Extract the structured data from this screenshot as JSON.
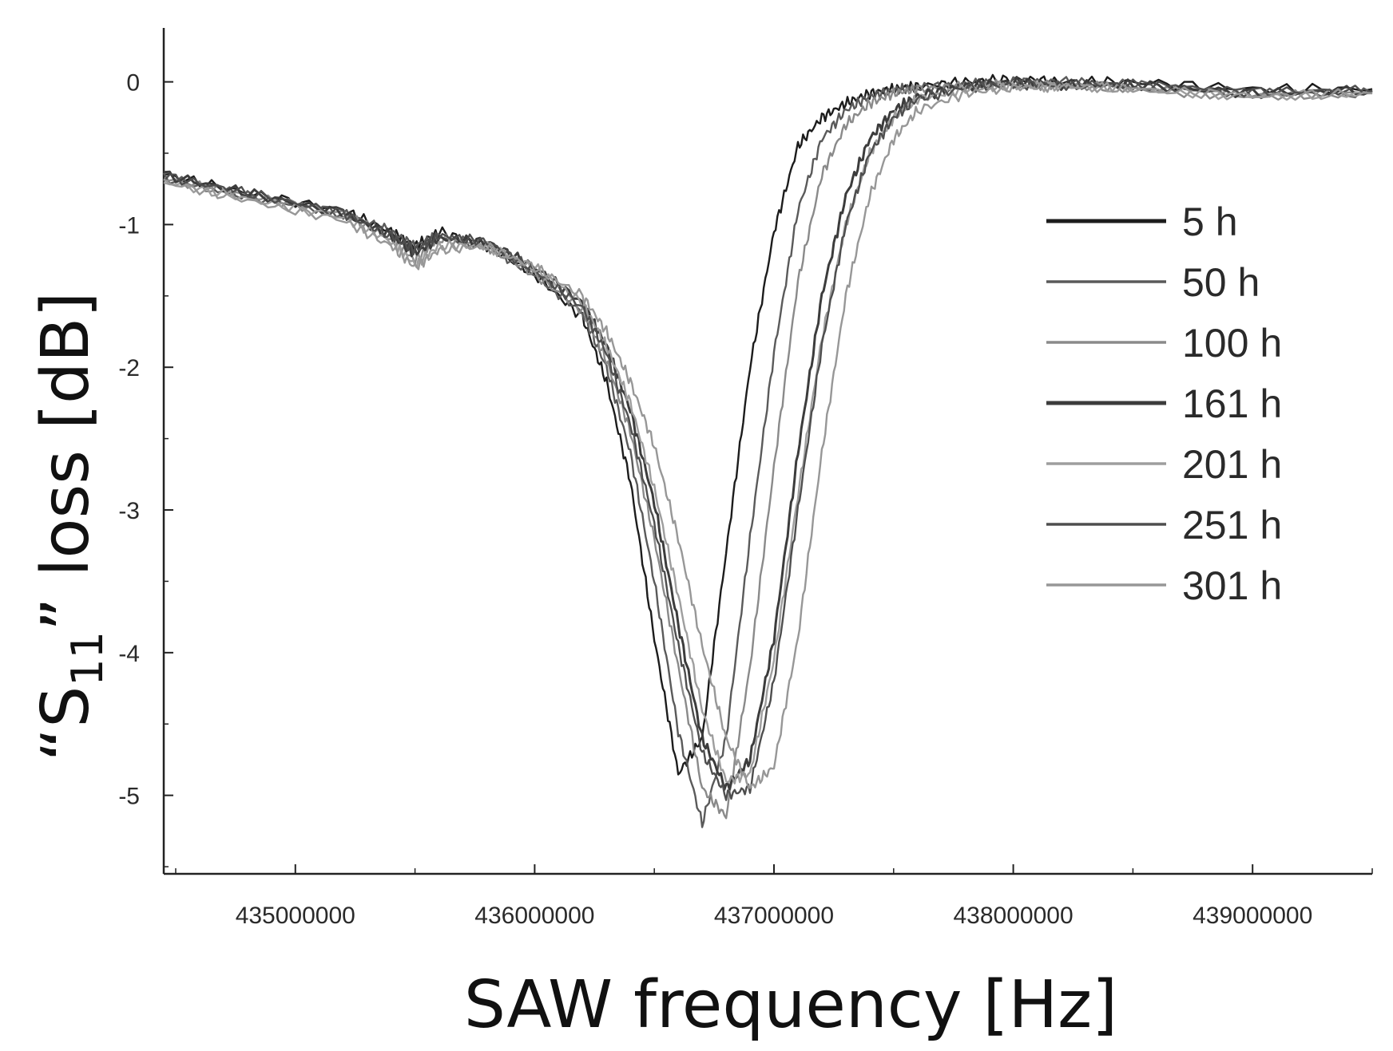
{
  "chart_data": {
    "type": "line",
    "title": "",
    "xlabel": "SAW frequency [Hz]",
    "ylabel": {
      "prefix": "“S",
      "subscript": "11",
      "suffix": "” loss [dB]"
    },
    "xlim": [
      434450000,
      439500000
    ],
    "ylim": [
      -5.55,
      0.35
    ],
    "xticks": [
      435000000,
      436000000,
      437000000,
      438000000,
      439000000
    ],
    "xtick_labels": [
      "435000000",
      "436000000",
      "437000000",
      "438000000",
      "439000000"
    ],
    "yticks": [
      0,
      -1,
      -2,
      -3,
      -4,
      -5
    ],
    "ytick_labels": [
      "0",
      "-1",
      "-2",
      "-3",
      "-4",
      "-5"
    ],
    "legend_position": "right",
    "grid": false,
    "series": [
      {
        "name": "5 h",
        "color": "#1c1c1c",
        "x": [
          434450000,
          434800000,
          435200000,
          435400000,
          435500000,
          435600000,
          435800000,
          436000000,
          436200000,
          436300000,
          436400000,
          436500000,
          436600000,
          436700000,
          436800000,
          436900000,
          437000000,
          437100000,
          437200000,
          437300000,
          437400000,
          437500000,
          437600000,
          437800000,
          438000000,
          438200000,
          438500000,
          439000000,
          439500000
        ],
        "y": [
          -0.65,
          -0.78,
          -0.9,
          -1.05,
          -1.15,
          -1.05,
          -1.15,
          -1.35,
          -1.65,
          -2.1,
          -2.8,
          -3.9,
          -4.85,
          -4.6,
          -3.3,
          -2.0,
          -1.05,
          -0.45,
          -0.25,
          -0.15,
          -0.08,
          -0.05,
          -0.03,
          0.0,
          0.02,
          0.0,
          0.0,
          -0.05,
          -0.05
        ]
      },
      {
        "name": "50 h",
        "color": "#5a5a5a",
        "x": [
          434450000,
          434800000,
          435200000,
          435400000,
          435500000,
          435600000,
          435800000,
          436000000,
          436200000,
          436300000,
          436400000,
          436500000,
          436600000,
          436700000,
          436800000,
          436900000,
          437000000,
          437100000,
          437200000,
          437300000,
          437400000,
          437500000,
          437600000,
          437800000,
          438000000,
          438200000,
          438500000,
          439000000,
          439500000
        ],
        "y": [
          -0.67,
          -0.8,
          -0.92,
          -1.05,
          -1.15,
          -1.08,
          -1.15,
          -1.35,
          -1.62,
          -2.0,
          -2.6,
          -3.5,
          -4.55,
          -5.2,
          -4.6,
          -3.2,
          -1.9,
          -0.9,
          -0.4,
          -0.2,
          -0.1,
          -0.06,
          -0.04,
          -0.02,
          0.0,
          0.0,
          -0.02,
          -0.08,
          -0.08
        ]
      },
      {
        "name": "100 h",
        "color": "#8a8a8a",
        "x": [
          434450000,
          434800000,
          435200000,
          435400000,
          435500000,
          435600000,
          435800000,
          436000000,
          436200000,
          436300000,
          436400000,
          436500000,
          436600000,
          436700000,
          436800000,
          436900000,
          437000000,
          437100000,
          437200000,
          437300000,
          437400000,
          437500000,
          437600000,
          437800000,
          438000000,
          438200000,
          438500000,
          439000000,
          439500000
        ],
        "y": [
          -0.68,
          -0.8,
          -0.92,
          -1.1,
          -1.25,
          -1.1,
          -1.15,
          -1.35,
          -1.6,
          -1.95,
          -2.45,
          -3.2,
          -4.1,
          -4.95,
          -5.15,
          -4.1,
          -2.7,
          -1.4,
          -0.65,
          -0.3,
          -0.15,
          -0.08,
          -0.05,
          -0.03,
          -0.02,
          -0.02,
          -0.05,
          -0.1,
          -0.08
        ]
      },
      {
        "name": "161 h",
        "color": "#3c3c3c",
        "x": [
          434450000,
          434800000,
          435200000,
          435400000,
          435500000,
          435600000,
          435800000,
          436000000,
          436200000,
          436300000,
          436400000,
          436500000,
          436600000,
          436700000,
          436800000,
          436900000,
          437000000,
          437100000,
          437200000,
          437300000,
          437400000,
          437500000,
          437600000,
          437800000,
          438000000,
          438200000,
          438500000,
          439000000,
          439500000
        ],
        "y": [
          -0.65,
          -0.78,
          -0.92,
          -1.08,
          -1.2,
          -1.1,
          -1.12,
          -1.3,
          -1.55,
          -1.85,
          -2.3,
          -2.95,
          -3.8,
          -4.6,
          -4.95,
          -4.75,
          -3.9,
          -2.6,
          -1.5,
          -0.8,
          -0.4,
          -0.2,
          -0.1,
          -0.03,
          0.0,
          -0.02,
          -0.02,
          -0.08,
          -0.06
        ]
      },
      {
        "name": "201 h",
        "color": "#9e9e9e",
        "x": [
          434450000,
          434800000,
          435200000,
          435400000,
          435500000,
          435600000,
          435800000,
          436000000,
          436200000,
          436300000,
          436400000,
          436500000,
          436600000,
          436700000,
          436800000,
          436900000,
          437000000,
          437100000,
          437200000,
          437300000,
          437400000,
          437500000,
          437600000,
          437800000,
          438000000,
          438200000,
          438500000,
          439000000,
          439500000
        ],
        "y": [
          -0.7,
          -0.82,
          -0.95,
          -1.12,
          -1.28,
          -1.15,
          -1.15,
          -1.3,
          -1.55,
          -1.85,
          -2.25,
          -2.85,
          -3.6,
          -4.4,
          -4.9,
          -4.85,
          -4.05,
          -2.9,
          -1.8,
          -1.0,
          -0.5,
          -0.25,
          -0.12,
          -0.05,
          -0.03,
          -0.03,
          -0.05,
          -0.1,
          -0.08
        ]
      },
      {
        "name": "251 h",
        "color": "#4e4e4e",
        "x": [
          434450000,
          434800000,
          435200000,
          435400000,
          435500000,
          435600000,
          435800000,
          436000000,
          436200000,
          436300000,
          436400000,
          436500000,
          436600000,
          436700000,
          436800000,
          436900000,
          437000000,
          437100000,
          437200000,
          437300000,
          437400000,
          437500000,
          437600000,
          437800000,
          438000000,
          438200000,
          438500000,
          439000000,
          439500000
        ],
        "y": [
          -0.66,
          -0.78,
          -0.92,
          -1.08,
          -1.18,
          -1.08,
          -1.12,
          -1.32,
          -1.58,
          -1.9,
          -2.4,
          -3.1,
          -3.95,
          -4.7,
          -5.0,
          -4.95,
          -4.2,
          -3.0,
          -1.85,
          -1.0,
          -0.5,
          -0.25,
          -0.12,
          -0.04,
          -0.02,
          -0.02,
          -0.02,
          -0.07,
          -0.06
        ]
      },
      {
        "name": "301 h",
        "color": "#979797",
        "x": [
          434450000,
          434800000,
          435200000,
          435400000,
          435500000,
          435600000,
          435800000,
          436000000,
          436200000,
          436300000,
          436400000,
          436500000,
          436600000,
          436700000,
          436800000,
          436900000,
          437000000,
          437100000,
          437200000,
          437300000,
          437400000,
          437500000,
          437600000,
          437800000,
          438000000,
          438200000,
          438500000,
          439000000,
          439500000
        ],
        "y": [
          -0.7,
          -0.83,
          -0.97,
          -1.15,
          -1.3,
          -1.18,
          -1.15,
          -1.3,
          -1.5,
          -1.75,
          -2.1,
          -2.55,
          -3.2,
          -3.95,
          -4.6,
          -4.95,
          -4.8,
          -3.9,
          -2.6,
          -1.5,
          -0.8,
          -0.4,
          -0.2,
          -0.08,
          -0.04,
          -0.03,
          -0.05,
          -0.1,
          -0.08
        ]
      }
    ]
  }
}
